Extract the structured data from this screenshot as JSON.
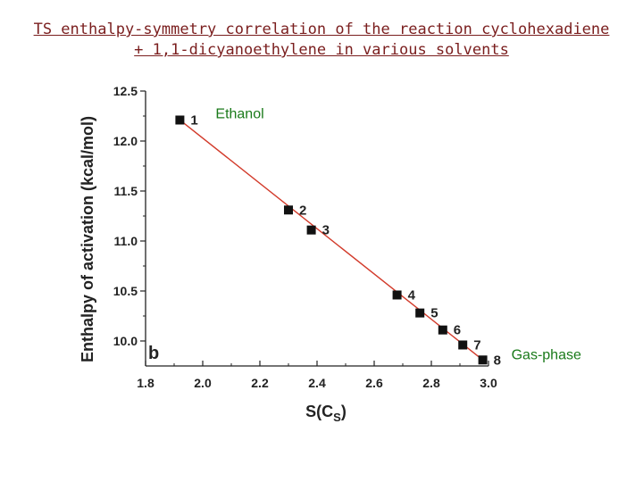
{
  "header": {
    "title_line1": "TS enthalpy-symmetry correlation of the reaction cyclohexadiene",
    "title_line2": "+ 1,1-dicyanoethylene in various solvents"
  },
  "chart_data": {
    "type": "scatter",
    "title": "TS enthalpy-symmetry correlation of the reaction cyclohexadiene + 1,1-dicyanoethylene in various solvents",
    "xlabel_main": "S(C",
    "xlabel_sub": "S",
    "xlabel_close": ")",
    "ylabel": "Enthalpy of activation (kcal/mol)",
    "xlim": [
      1.8,
      3.0
    ],
    "ylim": [
      9.75,
      12.5
    ],
    "xticks": [
      "1.8",
      "2.0",
      "2.2",
      "2.4",
      "2.6",
      "2.8",
      "3.0"
    ],
    "yticks": [
      "10.0",
      "10.5",
      "11.0",
      "11.5",
      "12.0",
      "12.5"
    ],
    "panel_label": "b",
    "series": [
      {
        "labels": [
          "1",
          "2",
          "3",
          "4",
          "5",
          "6",
          "7",
          "8"
        ],
        "x": [
          1.92,
          2.3,
          2.38,
          2.68,
          2.76,
          2.84,
          2.91,
          2.98
        ],
        "y": [
          12.21,
          11.31,
          11.11,
          10.46,
          10.28,
          10.11,
          9.96,
          9.81
        ]
      }
    ],
    "fit_line": {
      "x": [
        1.92,
        2.98
      ],
      "y": [
        12.21,
        9.81
      ],
      "color": "#d23a2a"
    },
    "annotations": [
      {
        "text": "Ethanol",
        "point": "1"
      },
      {
        "text": "Gas-phase",
        "point": "8"
      }
    ],
    "colors": {
      "marker": "#111111",
      "annotation": "#1a7a1a",
      "title": "#7a1e1e"
    }
  }
}
